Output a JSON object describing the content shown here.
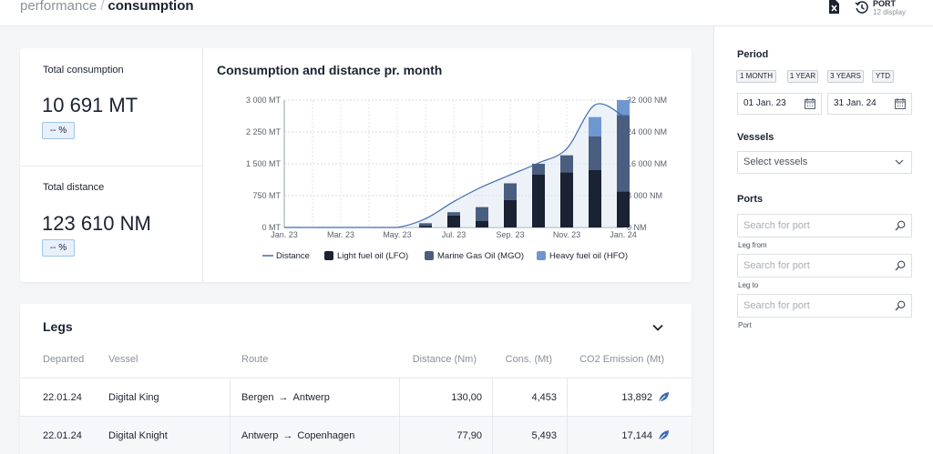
{
  "header": {
    "breadcrumb_parent": "performance",
    "breadcrumb_sep": "/",
    "breadcrumb_current": "consumption",
    "excel_icon": "excel-export-icon",
    "port_label": "PORT",
    "port_sub": "12 display"
  },
  "summary": {
    "total_consumption_title": "Total consumption",
    "total_consumption_value": "10 691 MT",
    "total_consumption_badge": "-- %",
    "total_distance_title": "Total distance",
    "total_distance_value": "123 610 NM",
    "total_distance_badge": "-- %"
  },
  "chart_title": "Consumption and distance pr. month",
  "chart_data": {
    "type": "bar",
    "stacked": true,
    "categories": [
      "Jan. 23",
      "Feb. 23",
      "Mar. 23",
      "Apr. 23",
      "May. 23",
      "Jun. 23",
      "Jul. 23",
      "Aug. 23",
      "Sep. 23",
      "Oct. 23",
      "Nov. 23",
      "Dec. 23",
      "Jan. 24"
    ],
    "x_tick_labels": [
      "Jan. 23",
      "Mar. 23",
      "May. 23",
      "Jul. 23",
      "Sep. 23",
      "Nov. 23",
      "Jan. 24"
    ],
    "y_left_ticks": [
      "0 MT",
      "750 MT",
      "1 500 MT",
      "2 250 MT",
      "3 000 MT"
    ],
    "y_left_range": [
      0,
      3000
    ],
    "y_right_ticks": [
      "0 NM",
      "8 000 NM",
      "16 000 NM",
      "24 000 NM",
      "32 000 NM"
    ],
    "y_right_range": [
      0,
      32000
    ],
    "grid": true,
    "legend_position": "bottom",
    "series": [
      {
        "name": "Light fuel oil (LFO)",
        "color": "#1a2233",
        "values": [
          0,
          0,
          0,
          0,
          0,
          40,
          280,
          150,
          650,
          1250,
          1300,
          1350,
          850
        ]
      },
      {
        "name": "Marine Gas Oil (MGO)",
        "color": "#4a5e80",
        "values": [
          0,
          0,
          0,
          0,
          0,
          60,
          80,
          330,
          390,
          250,
          400,
          800,
          1800
        ]
      },
      {
        "name": "Heavy fuel oil (HFO)",
        "color": "#6e97d0",
        "values": [
          0,
          0,
          0,
          0,
          0,
          0,
          0,
          0,
          0,
          0,
          0,
          450,
          350
        ]
      }
    ],
    "line_series": {
      "name": "Distance",
      "color": "#3d6cb0",
      "axis": "right",
      "values": [
        0,
        0,
        0,
        0,
        0,
        2200,
        6500,
        10200,
        13200,
        16200,
        19800,
        30800,
        28000
      ]
    }
  },
  "legs": {
    "title": "Legs",
    "columns": [
      "Departed",
      "Vessel",
      "Route",
      "Distance (Nm)",
      "Cons. (Mt)",
      "CO2 Emission (Mt)"
    ],
    "rows": [
      {
        "departed": "22.01.24",
        "vessel": "Digital King",
        "from": "Bergen",
        "to": "Antwerp",
        "distance": "130,00",
        "cons": "4,453",
        "co2": "13,892"
      },
      {
        "departed": "22.01.24",
        "vessel": "Digital Knight",
        "from": "Antwerp",
        "to": "Copenhagen",
        "distance": "77,90",
        "cons": "5,493",
        "co2": "17,144"
      }
    ]
  },
  "sidebar": {
    "period_title": "Period",
    "period_buttons": [
      "1 MONTH",
      "1 YEAR",
      "3 YEARS",
      "YTD"
    ],
    "date_from": "01 Jan. 23",
    "date_to": "31 Jan. 24",
    "vessels_title": "Vessels",
    "vessels_placeholder": "Select vessels",
    "ports_title": "Ports",
    "port_search_placeholder": "Search for port",
    "leg_from_label": "Leg from",
    "leg_to_label": "Leg to",
    "port_label": "Port"
  }
}
